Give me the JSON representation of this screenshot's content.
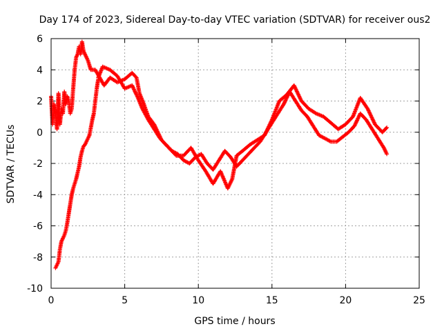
{
  "chart_data": {
    "type": "scatter",
    "marker": "+",
    "title": "Day 174 of 2023, Sidereal Day-to-day VTEC variation (SDTVAR) for receiver ous2",
    "xlabel": "GPS time / hours",
    "ylabel": "SDTVAR / TECUs",
    "xlim": [
      0,
      25
    ],
    "ylim": [
      -10,
      6
    ],
    "xticks": [
      0,
      5,
      10,
      15,
      20,
      25
    ],
    "yticks": [
      -10,
      -8,
      -6,
      -4,
      -2,
      0,
      2,
      4,
      6
    ],
    "grid": true,
    "series": [
      {
        "name": "SDTVAR",
        "color": "#ff0000",
        "x": [
          0.0,
          0.1,
          0.2,
          0.3,
          0.4,
          0.5,
          0.6,
          0.7,
          0.8,
          0.9,
          1.0,
          1.1,
          1.2,
          1.3,
          1.4,
          1.5,
          1.6,
          1.7,
          1.8,
          1.9,
          2.0,
          2.1,
          2.2,
          2.3,
          2.5,
          2.7,
          3.0,
          3.3,
          3.6,
          4.0,
          4.5,
          5.0,
          5.5,
          5.8,
          6.0,
          6.3,
          6.6,
          7.0,
          7.5,
          8.0,
          8.5,
          9.0,
          9.5,
          10.0,
          10.5,
          11.0,
          11.5,
          12.0,
          12.3,
          12.6,
          13.0,
          13.5,
          14.0,
          14.5,
          15.0,
          15.5,
          16.0,
          16.5,
          17.0,
          17.5,
          18.0,
          18.5,
          19.0,
          19.5,
          20.0,
          20.5,
          21.0,
          21.5,
          22.0,
          22.5,
          22.8
        ],
        "y": [
          2.3,
          0.5,
          1.8,
          1.2,
          0.2,
          2.5,
          0.5,
          1.5,
          1.2,
          2.6,
          1.8,
          2.3,
          2.0,
          1.2,
          1.5,
          2.8,
          4.0,
          4.8,
          5.0,
          5.5,
          5.0,
          5.8,
          5.2,
          5.0,
          4.6,
          4.0,
          4.0,
          3.5,
          3.0,
          3.5,
          3.2,
          3.4,
          3.8,
          3.5,
          2.5,
          1.8,
          1.0,
          0.5,
          -0.5,
          -1.0,
          -1.5,
          -1.5,
          -1.0,
          -1.8,
          -2.5,
          -3.3,
          -2.5,
          -3.6,
          -3.0,
          -1.5,
          -1.2,
          -0.8,
          -0.5,
          -0.2,
          0.8,
          2.0,
          2.4,
          3.0,
          2.0,
          1.5,
          1.2,
          1.0,
          0.6,
          0.2,
          0.5,
          1.0,
          2.2,
          1.5,
          0.5,
          0.0,
          0.3
        ]
      },
      {
        "name": "SDTVAR",
        "color": "#ff0000",
        "x": [
          0.3,
          0.4,
          0.5,
          0.6,
          0.7,
          0.8,
          0.9,
          1.0,
          1.1,
          1.2,
          1.3,
          1.4,
          1.5,
          1.6,
          1.7,
          1.8,
          1.9,
          2.0,
          2.1,
          2.2,
          2.3,
          2.4,
          2.5,
          2.6,
          2.7,
          2.8,
          2.9,
          3.0,
          3.1,
          3.2
        ],
        "y": [
          -8.7,
          -8.5,
          -8.3,
          -7.5,
          -7.0,
          -6.8,
          -6.6,
          -6.3,
          -5.8,
          -5.2,
          -4.6,
          -4.0,
          -3.6,
          -3.3,
          -3.0,
          -2.6,
          -2.2,
          -1.6,
          -1.2,
          -0.9,
          -0.8,
          -0.6,
          -0.4,
          -0.2,
          0.3,
          0.8,
          1.2,
          2.0,
          2.8,
          3.4
        ]
      },
      {
        "name": "SDTVAR",
        "color": "#ff0000",
        "x": [
          3.2,
          3.5,
          4.0,
          4.5,
          5.0,
          5.5,
          5.9,
          6.2,
          6.6,
          7.0,
          7.4,
          7.8,
          8.2,
          8.6,
          9.0,
          9.4,
          9.8,
          10.2,
          10.6,
          11.0,
          11.4,
          11.8,
          12.2,
          12.6,
          13.0,
          13.4,
          13.8,
          14.2,
          14.6,
          15.0,
          15.4,
          15.8,
          16.2,
          16.6,
          17.0,
          17.4,
          17.8,
          18.2,
          18.6,
          19.0,
          19.4,
          19.8,
          20.2,
          20.6,
          21.0,
          21.4,
          21.8,
          22.2,
          22.6,
          22.8
        ],
        "y": [
          3.5,
          4.2,
          4.0,
          3.6,
          2.8,
          3.0,
          2.2,
          1.5,
          0.8,
          0.2,
          -0.4,
          -0.8,
          -1.2,
          -1.4,
          -1.8,
          -2.0,
          -1.6,
          -1.4,
          -2.0,
          -2.4,
          -1.8,
          -1.2,
          -1.6,
          -2.2,
          -1.8,
          -1.4,
          -1.0,
          -0.6,
          0.0,
          0.6,
          1.2,
          1.8,
          2.6,
          2.0,
          1.4,
          1.0,
          0.4,
          -0.2,
          -0.4,
          -0.6,
          -0.6,
          -0.3,
          0.0,
          0.4,
          1.2,
          0.8,
          0.2,
          -0.4,
          -1.0,
          -1.4
        ]
      }
    ]
  }
}
